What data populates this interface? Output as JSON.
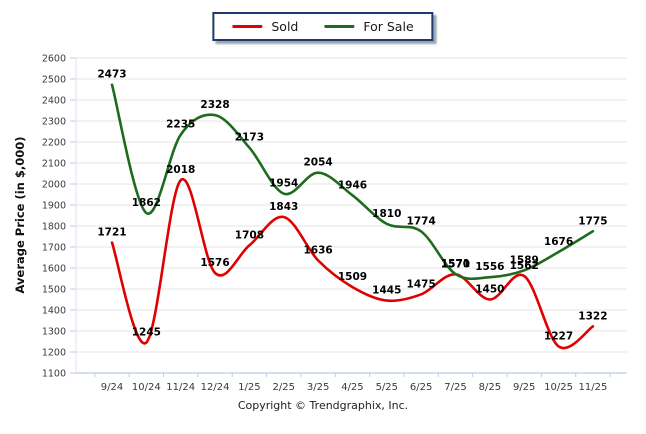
{
  "legend": {
    "items": [
      {
        "label": "Sold",
        "color": "#e00000"
      },
      {
        "label": "For Sale",
        "color": "#1e6b1e"
      }
    ]
  },
  "chart_data": {
    "type": "line",
    "title": "",
    "xlabel": "",
    "ylabel": "Average Price (in $,000)",
    "categories": [
      "9/24",
      "10/24",
      "11/24",
      "12/24",
      "1/25",
      "2/25",
      "3/25",
      "4/25",
      "5/25",
      "6/25",
      "7/25",
      "8/25",
      "9/25",
      "10/25",
      "11/25"
    ],
    "series": [
      {
        "name": "Sold",
        "color": "#e00000",
        "values": [
          1721,
          1245,
          2018,
          1576,
          1708,
          1843,
          1636,
          1509,
          1445,
          1475,
          1570,
          1450,
          1562,
          1227,
          1322
        ]
      },
      {
        "name": "For Sale",
        "color": "#1e6b1e",
        "values": [
          2473,
          1862,
          2235,
          2328,
          2173,
          1954,
          2054,
          1946,
          1810,
          1774,
          1571,
          1556,
          1589,
          1676,
          1775
        ]
      }
    ],
    "ylim": [
      1100,
      2600
    ],
    "ytick_step": 100,
    "grid": true,
    "legend_position": "top",
    "data_labels": true,
    "smooth": true
  },
  "footer": {
    "copyright": "Copyright © Trendgraphix, Inc."
  }
}
